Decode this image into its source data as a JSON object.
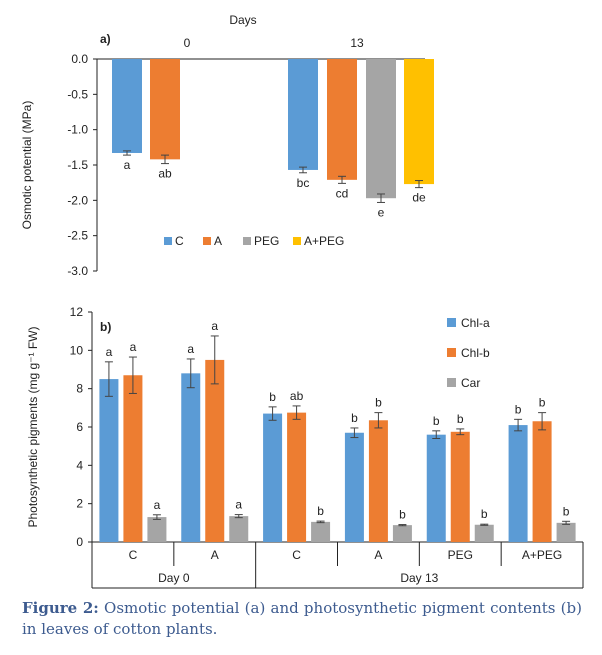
{
  "colors": {
    "C": "#5b9bd5",
    "A": "#ed7d31",
    "PEG": "#a5a5a5",
    "A+PEG": "#ffc000",
    "Chl-a": "#5b9bd5",
    "Chl-b": "#ed7d31",
    "Car": "#a5a5a5"
  },
  "chart_data": [
    {
      "type": "bar",
      "panel_label": "a)",
      "title": "Days",
      "ylabel": "Osmotic potential (MPa)",
      "ylim": [
        -3.0,
        0.0
      ],
      "yticks": [
        "0.0",
        "-0.5",
        "-1.0",
        "-1.5",
        "-2.0",
        "-2.5",
        "-3.0"
      ],
      "categories": [
        "0",
        "13"
      ],
      "series": [
        {
          "name": "C",
          "values": [
            -1.33,
            -1.57
          ],
          "errors": [
            0.03,
            0.04
          ],
          "letters": [
            "a",
            "bc"
          ]
        },
        {
          "name": "A",
          "values": [
            -1.42,
            -1.71
          ],
          "errors": [
            0.06,
            0.05
          ],
          "letters": [
            "ab",
            "cd"
          ]
        },
        {
          "name": "PEG",
          "values": [
            null,
            -1.97
          ],
          "errors": [
            null,
            0.06
          ],
          "letters": [
            "",
            "e"
          ]
        },
        {
          "name": "A+PEG",
          "values": [
            null,
            -1.77
          ],
          "errors": [
            null,
            0.05
          ],
          "letters": [
            "",
            "de"
          ]
        }
      ],
      "legend_position": "bottom"
    },
    {
      "type": "bar",
      "panel_label": "b)",
      "ylabel": "Photosynthetic pigments (mg g⁻¹ FW)",
      "ylim": [
        0,
        12
      ],
      "yticks": [
        "0",
        "2",
        "4",
        "6",
        "8",
        "10",
        "12"
      ],
      "categories": [
        "C",
        "A",
        "C",
        "A",
        "PEG",
        "A+PEG"
      ],
      "groups": [
        {
          "label": "Day 0",
          "count": 2
        },
        {
          "label": "Day 13",
          "count": 4
        }
      ],
      "series": [
        {
          "name": "Chl-a",
          "values": [
            8.5,
            8.8,
            6.7,
            5.7,
            5.6,
            6.1
          ],
          "errors": [
            0.9,
            0.75,
            0.35,
            0.25,
            0.2,
            0.3
          ],
          "letters": [
            "a",
            "a",
            "b",
            "b",
            "b",
            "b"
          ]
        },
        {
          "name": "Chl-b",
          "values": [
            8.7,
            9.5,
            6.75,
            6.35,
            5.75,
            6.3
          ],
          "errors": [
            0.95,
            1.25,
            0.35,
            0.4,
            0.15,
            0.45
          ],
          "letters": [
            "a",
            "a",
            "ab",
            "b",
            "b",
            "b"
          ]
        },
        {
          "name": "Car",
          "values": [
            1.3,
            1.35,
            1.05,
            0.88,
            0.9,
            1.0
          ],
          "errors": [
            0.12,
            0.08,
            0.04,
            0.03,
            0.03,
            0.08
          ],
          "letters": [
            "a",
            "a",
            "b",
            "b",
            "b",
            "b"
          ]
        }
      ],
      "legend_position": "top-right"
    }
  ],
  "caption": {
    "label": "Figure 2:",
    "text": " Osmotic potential (a) and photosynthetic pigment contents (b) in leaves of cotton plants."
  }
}
